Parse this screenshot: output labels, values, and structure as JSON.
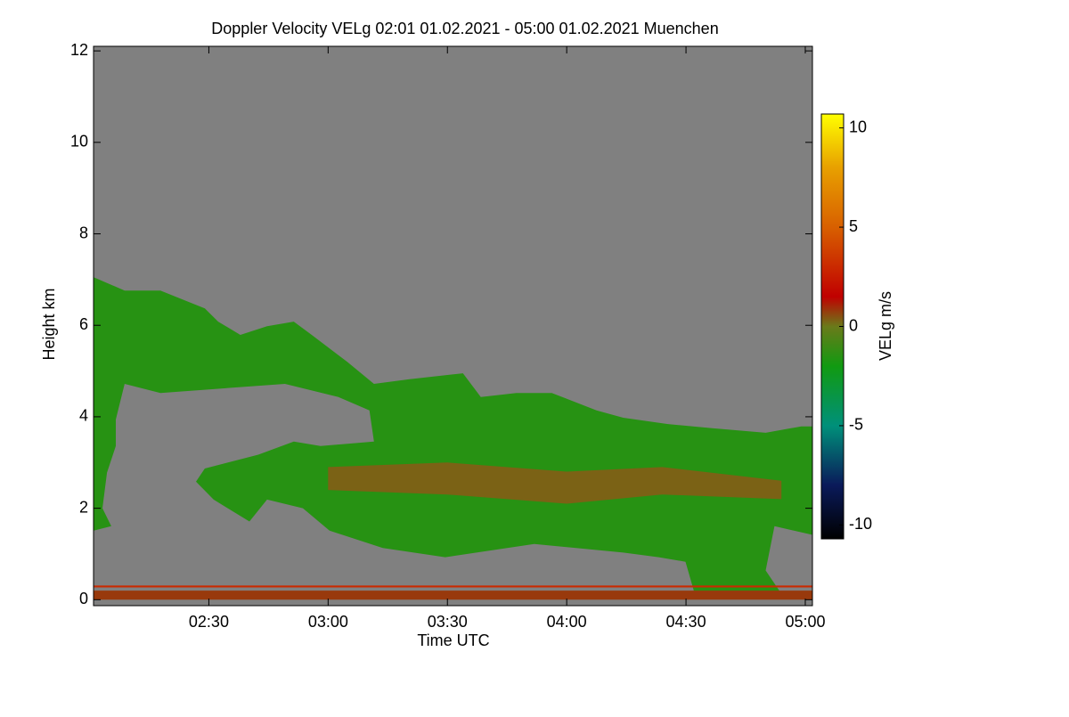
{
  "chart_data": {
    "type": "heatmap",
    "title": "Doppler Velocity VELg   02:01 01.02.2021 - 05:00 01.02.2021 Muenchen",
    "xlabel": "Time UTC",
    "ylabel": "Height km",
    "colorbar_label": "VELg m/s",
    "background": "#808080",
    "xlim": [
      2.0167,
      5.03
    ],
    "xticks": [
      {
        "value": 2.5,
        "label": "02:30"
      },
      {
        "value": 3.0,
        "label": "03:00"
      },
      {
        "value": 3.5,
        "label": "03:30"
      },
      {
        "value": 4.0,
        "label": "04:00"
      },
      {
        "value": 4.5,
        "label": "04:30"
      },
      {
        "value": 5.0,
        "label": "05:00"
      }
    ],
    "ylim": [
      -0.13,
      12.1
    ],
    "yticks": [
      0,
      2,
      4,
      6,
      8,
      10,
      12
    ],
    "clim": [
      -10.7,
      10.7
    ],
    "cticks": [
      -10,
      -5,
      0,
      5,
      10
    ],
    "colorscale": [
      [
        -10.7,
        "#000000"
      ],
      [
        -8,
        "#0a1a5a"
      ],
      [
        -5,
        "#00907a"
      ],
      [
        -2,
        "#119a11"
      ],
      [
        0,
        "#6a7a1a"
      ],
      [
        1.5,
        "#c00000"
      ],
      [
        5,
        "#d86000"
      ],
      [
        8,
        "#e8a000"
      ],
      [
        10.7,
        "#ffff00"
      ]
    ],
    "regions": [
      {
        "value": -1.5,
        "time": [
          2.017,
          2.147,
          2.297,
          2.483,
          2.539,
          2.632,
          2.744,
          2.856,
          2.931,
          3.08,
          3.192,
          3.341,
          3.565,
          3.64,
          3.789,
          3.938,
          4.125,
          4.237,
          4.424,
          4.61,
          4.834,
          4.983,
          5.028,
          5.028,
          4.871,
          4.834,
          4.909,
          4.535,
          4.498,
          4.386,
          4.237,
          3.864,
          3.491,
          3.229,
          3.006,
          2.894,
          2.744,
          2.67,
          2.52,
          2.446,
          2.483,
          2.707,
          2.856,
          2.968,
          3.192,
          3.173,
          3.043,
          2.819,
          2.558,
          2.297,
          2.147,
          2.11,
          2.11,
          2.073,
          2.054,
          2.091,
          2.017
        ],
        "height": [
          7.05,
          6.76,
          6.76,
          6.37,
          6.08,
          5.79,
          5.98,
          6.08,
          5.79,
          5.2,
          4.72,
          4.82,
          4.95,
          4.43,
          4.52,
          4.52,
          4.14,
          3.98,
          3.84,
          3.75,
          3.65,
          3.79,
          3.79,
          1.42,
          1.61,
          0.64,
          0.06,
          0.16,
          0.83,
          0.93,
          1.03,
          1.22,
          0.93,
          1.13,
          1.51,
          2.0,
          2.19,
          1.71,
          2.19,
          2.58,
          2.87,
          3.17,
          3.46,
          3.36,
          3.46,
          4.14,
          4.43,
          4.72,
          4.62,
          4.52,
          4.72,
          3.94,
          3.36,
          2.78,
          2.0,
          1.61,
          1.51
        ]
      },
      {
        "value": 0.3,
        "time": [
          3.0,
          3.5,
          4.0,
          4.4,
          4.9,
          4.9,
          4.4,
          4.0,
          3.5,
          3.0
        ],
        "height": [
          2.9,
          3.0,
          2.8,
          2.9,
          2.6,
          2.2,
          2.3,
          2.1,
          2.3,
          2.4
        ]
      },
      {
        "value": 0.8,
        "time": [
          2.017,
          5.028,
          5.028,
          2.017
        ],
        "height": [
          0.0,
          0.0,
          0.2,
          0.2
        ]
      },
      {
        "value": 3,
        "time": [
          2.017,
          5.028,
          5.028,
          2.017
        ],
        "height": [
          0.27,
          0.27,
          0.31,
          0.31
        ]
      }
    ]
  }
}
